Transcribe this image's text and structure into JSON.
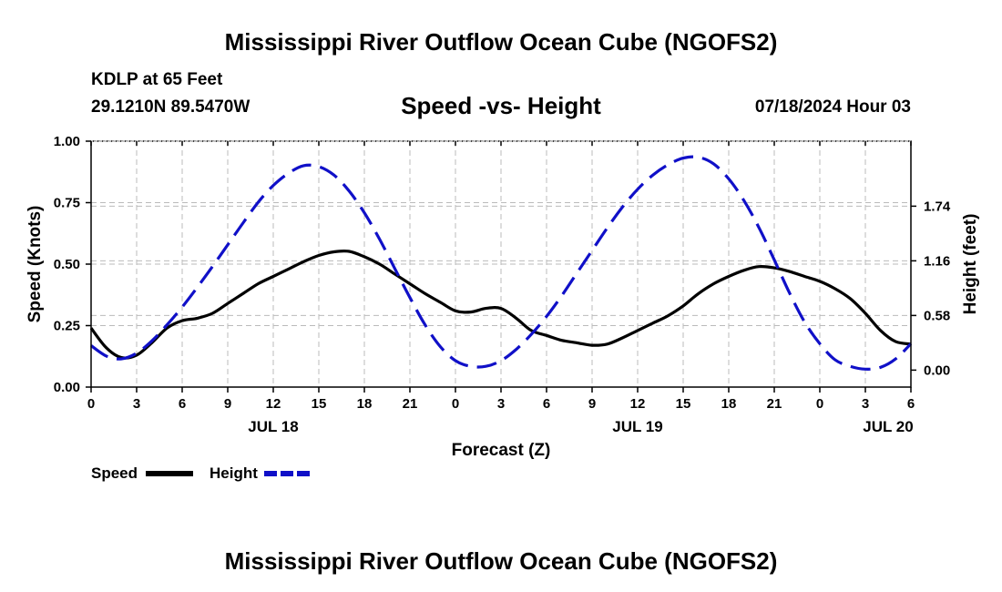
{
  "header": {
    "title": "Mississippi River Outflow Ocean Cube (NGOFS2)",
    "station": "KDLP at 65 Feet",
    "coords": "29.1210N  89.5470W",
    "subtitle": "Speed -vs- Height",
    "datetime": "07/18/2024 Hour 03"
  },
  "footer": {
    "title": "Mississippi River Outflow Ocean Cube (NGOFS2)"
  },
  "colors": {
    "speed": "#000000",
    "height": "#1010c8",
    "grid": "#bbbbbb"
  },
  "chart_data": {
    "type": "line",
    "title": "Speed -vs- Height",
    "xlabel": "Forecast (Z)",
    "ylabel": "Speed (Knots)",
    "ylabel_right": "Height (feet)",
    "xlim": [
      0,
      54
    ],
    "ylim": [
      0,
      1.0
    ],
    "ylim_right": [
      -0.18,
      2.43
    ],
    "x_ticks": [
      0,
      3,
      6,
      9,
      12,
      15,
      18,
      21,
      24,
      27,
      30,
      33,
      36,
      39,
      42,
      45,
      48,
      51,
      54
    ],
    "x_tick_labels": [
      "0",
      "3",
      "6",
      "9",
      "12",
      "15",
      "18",
      "21",
      "0",
      "3",
      "6",
      "9",
      "12",
      "15",
      "18",
      "21",
      "0",
      "3",
      "6"
    ],
    "date_labels": [
      {
        "x": 12,
        "label": "JUL 18"
      },
      {
        "x": 36,
        "label": "JUL 19"
      },
      {
        "x": 52.5,
        "label": "JUL 20"
      }
    ],
    "y_ticks": [
      0.0,
      0.25,
      0.5,
      0.75,
      1.0
    ],
    "y_tick_labels": [
      "0.00",
      "0.25",
      "0.50",
      "0.75",
      "1.00"
    ],
    "y_ticks_right": [
      0.0,
      0.58,
      1.16,
      1.74
    ],
    "y_tick_labels_right": [
      "0.00",
      "0.58",
      "1.16",
      "1.74"
    ],
    "series": [
      {
        "name": "Speed",
        "axis": "left",
        "style": "solid",
        "x": [
          0,
          1,
          2,
          3,
          4,
          5,
          6,
          7,
          8,
          9,
          10,
          11,
          12,
          13,
          14,
          15,
          16,
          17,
          18,
          19,
          20,
          21,
          22,
          23,
          24,
          25,
          26,
          27,
          28,
          29,
          30,
          31,
          32,
          33,
          34,
          35,
          36,
          37,
          38,
          39,
          40,
          41,
          42,
          43,
          44,
          45,
          46,
          47,
          48,
          49,
          50,
          51,
          52,
          53,
          54
        ],
        "values": [
          0.24,
          0.16,
          0.12,
          0.13,
          0.18,
          0.24,
          0.27,
          0.28,
          0.3,
          0.34,
          0.38,
          0.42,
          0.45,
          0.48,
          0.51,
          0.535,
          0.55,
          0.552,
          0.53,
          0.5,
          0.46,
          0.42,
          0.38,
          0.345,
          0.31,
          0.305,
          0.32,
          0.32,
          0.28,
          0.23,
          0.21,
          0.19,
          0.18,
          0.17,
          0.175,
          0.2,
          0.23,
          0.26,
          0.29,
          0.33,
          0.38,
          0.42,
          0.45,
          0.475,
          0.49,
          0.485,
          0.47,
          0.45,
          0.43,
          0.4,
          0.36,
          0.3,
          0.23,
          0.185,
          0.175
        ]
      },
      {
        "name": "Height",
        "axis": "right",
        "style": "dashed",
        "x": [
          0,
          1,
          2,
          3,
          4,
          5,
          6,
          7,
          8,
          9,
          10,
          11,
          12,
          13,
          14,
          15,
          16,
          17,
          18,
          19,
          20,
          21,
          22,
          23,
          24,
          25,
          26,
          27,
          28,
          29,
          30,
          31,
          32,
          33,
          34,
          35,
          36,
          37,
          38,
          39,
          40,
          41,
          42,
          43,
          44,
          45,
          46,
          47,
          48,
          49,
          50,
          51,
          52,
          53,
          54
        ],
        "values": [
          0.26,
          0.15,
          0.12,
          0.18,
          0.31,
          0.48,
          0.67,
          0.88,
          1.1,
          1.33,
          1.56,
          1.78,
          1.96,
          2.09,
          2.17,
          2.16,
          2.07,
          1.9,
          1.67,
          1.39,
          1.08,
          0.77,
          0.48,
          0.25,
          0.1,
          0.04,
          0.04,
          0.1,
          0.22,
          0.38,
          0.57,
          0.79,
          1.03,
          1.27,
          1.51,
          1.73,
          1.92,
          2.07,
          2.18,
          2.25,
          2.26,
          2.19,
          2.03,
          1.8,
          1.51,
          1.17,
          0.82,
          0.51,
          0.28,
          0.11,
          0.04,
          0.01,
          0.03,
          0.12,
          0.28
        ]
      }
    ],
    "legend": [
      {
        "label": "Speed",
        "style": "solid"
      },
      {
        "label": "Height",
        "style": "dashed"
      }
    ],
    "legend_position": "bottom-left",
    "grid": true
  }
}
